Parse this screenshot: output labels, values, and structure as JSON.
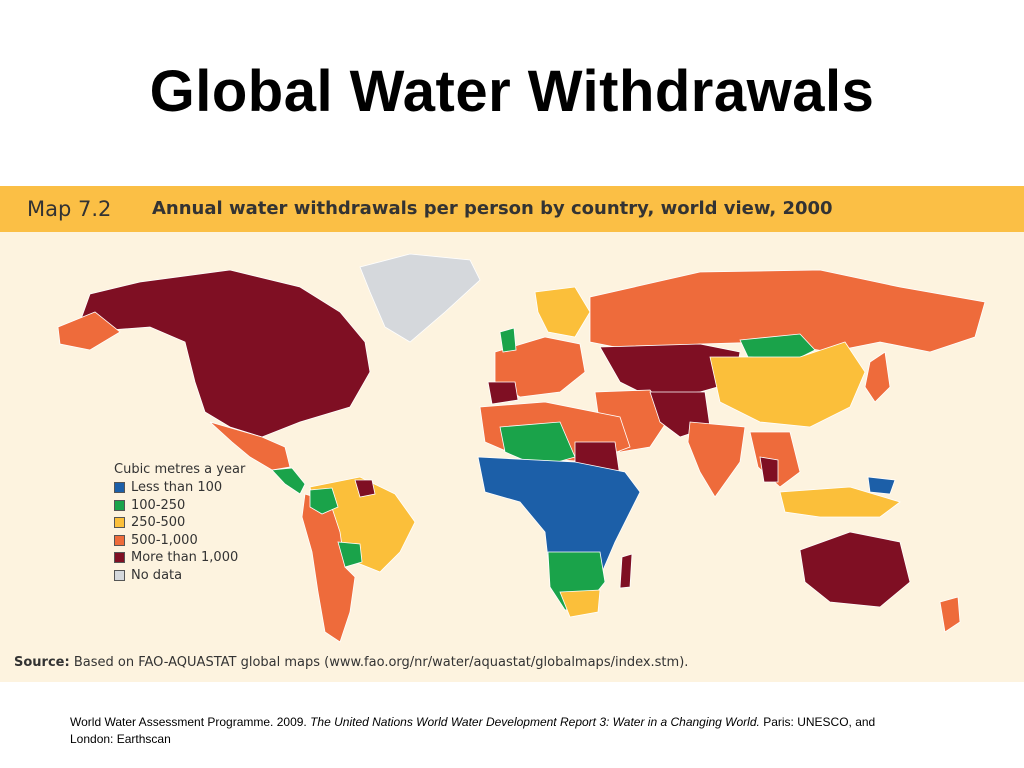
{
  "slide": {
    "title": "Global Water Withdrawals"
  },
  "figure": {
    "map_label": "Map 7.2",
    "map_title": "Annual water withdrawals per person by country, world view, 2000",
    "legend": {
      "title": "Cubic metres a year",
      "items": [
        {
          "label": "Less than 100",
          "color": "#1c5fa8"
        },
        {
          "label": "100-250",
          "color": "#1aa34a"
        },
        {
          "label": "250-500",
          "color": "#fbbf3a"
        },
        {
          "label": "500-1,000",
          "color": "#ee6b3b"
        },
        {
          "label": "More than 1,000",
          "color": "#7f0f23"
        },
        {
          "label": "No data",
          "color": "#d5d8dc"
        }
      ]
    },
    "source_label": "Source:",
    "source_text": "Based on FAO-AQUASTAT global maps (www.fao.org/nr/water/aquastat/globalmaps/index.stm)."
  },
  "citation": {
    "part1": "World Water Assessment Programme. 2009. ",
    "title_italic": "The United Nations World Water Development Report 3: Water in a Changing World.",
    "part2": " Paris: UNESCO, and London: Earthscan"
  }
}
